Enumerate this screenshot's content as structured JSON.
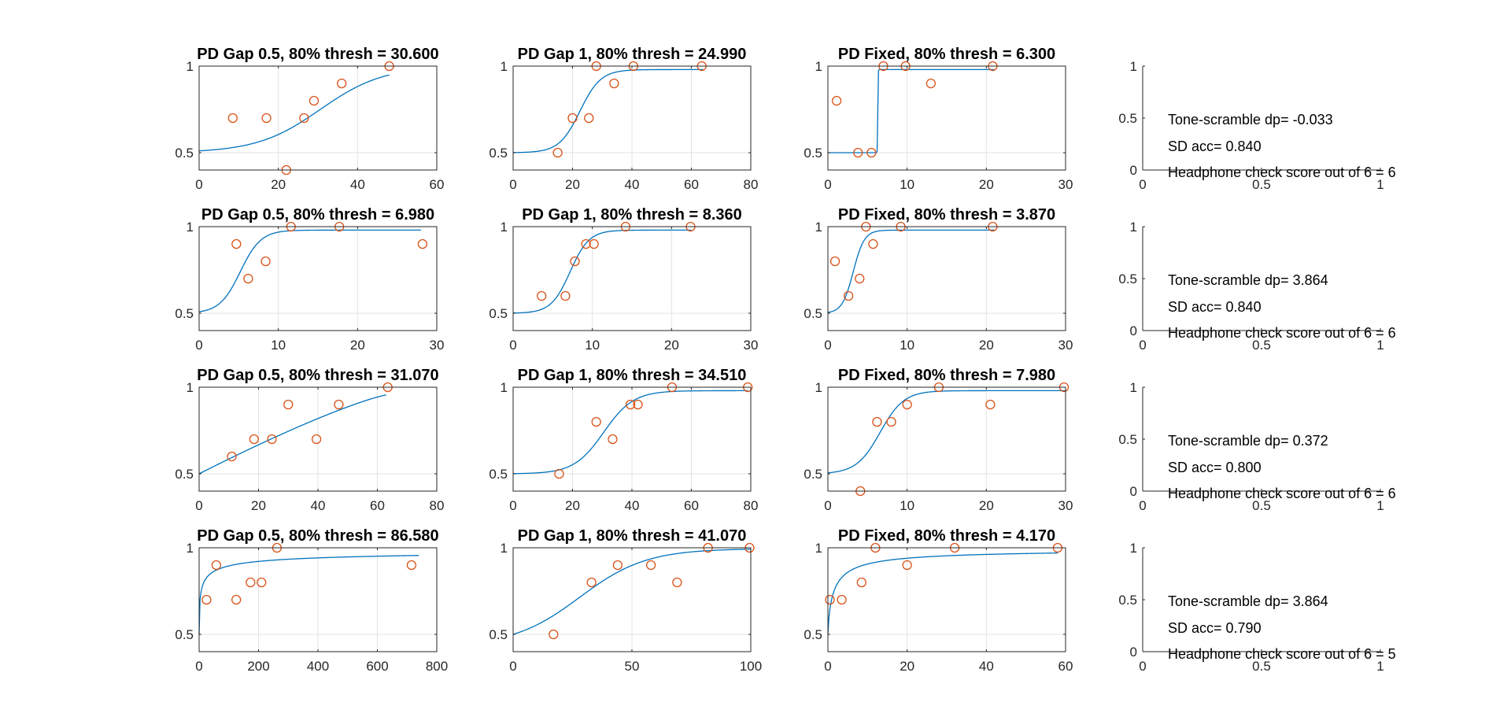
{
  "colors": {
    "curve": "#0072BD",
    "marker": "#D95319",
    "axis": "#262626",
    "grid": "#e3e3e3",
    "background": "#ffffff"
  },
  "chart_data": [
    {
      "type": "scatter",
      "title": "PD Gap 0.5, 80% thresh = 30.600",
      "xlim": [
        0,
        60
      ],
      "ylim": [
        0.4,
        1
      ],
      "xticks": [
        0,
        20,
        40,
        60
      ],
      "yticks": [
        0.5,
        1
      ],
      "grid": true,
      "fit": {
        "kind": "logistic",
        "mid": 30.6,
        "scale": 8,
        "ymax": 1,
        "xmax": 48
      },
      "points": {
        "x": [
          8.5,
          17,
          22,
          26.5,
          29,
          36,
          48
        ],
        "y": [
          0.7,
          0.7,
          0.4,
          0.7,
          0.8,
          0.9,
          1.0
        ]
      }
    },
    {
      "type": "scatter",
      "title": "PD Gap 1, 80% thresh = 24.990",
      "xlim": [
        0,
        80
      ],
      "ylim": [
        0.4,
        1
      ],
      "xticks": [
        0,
        20,
        40,
        60,
        80
      ],
      "yticks": [
        0.5,
        1
      ],
      "grid": true,
      "fit": {
        "kind": "logistic",
        "mid": 22.5,
        "scale": 3.5,
        "ymax": 0.98,
        "xmax": 64
      },
      "points": {
        "x": [
          15,
          20,
          25.5,
          28,
          34,
          40.5,
          63.5
        ],
        "y": [
          0.5,
          0.7,
          0.7,
          1.0,
          0.9,
          1.0,
          1.0
        ]
      }
    },
    {
      "type": "scatter",
      "title": "PD Fixed, 80% thresh = 6.300",
      "xlim": [
        0,
        30
      ],
      "ylim": [
        0.4,
        1
      ],
      "xticks": [
        0,
        10,
        20,
        30
      ],
      "yticks": [
        0.5,
        1
      ],
      "grid": true,
      "fit": {
        "kind": "logistic",
        "mid": 6.3,
        "scale": 0.02,
        "ymax": 0.98,
        "xmax": 21
      },
      "points": {
        "x": [
          1.1,
          3.8,
          5.5,
          7.0,
          9.8,
          13,
          20.8
        ],
        "y": [
          0.8,
          0.5,
          0.5,
          1.0,
          1.0,
          0.9,
          1.0
        ]
      }
    },
    {
      "type": "text",
      "xlim": [
        0,
        1
      ],
      "ylim": [
        0,
        1
      ],
      "xticks": [
        0,
        0.5,
        1
      ],
      "yticks": [
        0,
        0.5,
        1
      ],
      "annotations": [
        "Tone-scramble dp= -0.033",
        "SD acc= 0.840",
        "Headphone check score out of 6 = 6"
      ]
    },
    {
      "type": "scatter",
      "title": "PD Gap 0.5, 80% thresh = 6.980",
      "xlim": [
        0,
        30
      ],
      "ylim": [
        0.4,
        1
      ],
      "xticks": [
        0,
        10,
        20,
        30
      ],
      "yticks": [
        0.5,
        1
      ],
      "grid": true,
      "fit": {
        "kind": "logistic",
        "mid": 5.2,
        "scale": 1.3,
        "ymax": 0.98,
        "xmax": 28
      },
      "points": {
        "x": [
          4.7,
          6.2,
          8.4,
          11.6,
          17.7,
          28.2
        ],
        "y": [
          0.9,
          0.7,
          0.8,
          1.0,
          1.0,
          0.9
        ]
      }
    },
    {
      "type": "scatter",
      "title": "PD Gap 1, 80% thresh = 8.360",
      "xlim": [
        0,
        30
      ],
      "ylim": [
        0.4,
        1
      ],
      "xticks": [
        0,
        10,
        20,
        30
      ],
      "yticks": [
        0.5,
        1
      ],
      "grid": true,
      "fit": {
        "kind": "logistic",
        "mid": 7.2,
        "scale": 1.2,
        "ymax": 0.98,
        "xmax": 22.5
      },
      "points": {
        "x": [
          3.6,
          6.6,
          7.8,
          9.2,
          10.2,
          14.2,
          22.4
        ],
        "y": [
          0.6,
          0.6,
          0.8,
          0.9,
          0.9,
          1.0,
          1.0
        ]
      }
    },
    {
      "type": "scatter",
      "title": "PD Fixed, 80% thresh = 3.870",
      "xlim": [
        0,
        30
      ],
      "ylim": [
        0.4,
        1
      ],
      "xticks": [
        0,
        10,
        20,
        30
      ],
      "yticks": [
        0.5,
        1
      ],
      "grid": true,
      "fit": {
        "kind": "logistic",
        "mid": 3.2,
        "scale": 0.7,
        "ymax": 0.98,
        "xmax": 21
      },
      "points": {
        "x": [
          0.9,
          2.6,
          4.0,
          4.8,
          5.7,
          9.2,
          20.8
        ],
        "y": [
          0.8,
          0.6,
          0.7,
          1.0,
          0.9,
          1.0,
          1.0
        ]
      }
    },
    {
      "type": "text",
      "xlim": [
        0,
        1
      ],
      "ylim": [
        0,
        1
      ],
      "xticks": [
        0,
        0.5,
        1
      ],
      "yticks": [
        0,
        0.5,
        1
      ],
      "annotations": [
        "Tone-scramble dp= 3.864",
        "SD acc= 0.840",
        "Headphone check score out of 6 = 6"
      ]
    },
    {
      "type": "scatter",
      "title": "PD Gap 0.5, 80% thresh = 31.070",
      "xlim": [
        0,
        80
      ],
      "ylim": [
        0.4,
        1
      ],
      "xticks": [
        0,
        20,
        40,
        60,
        80
      ],
      "yticks": [
        0.5,
        1
      ],
      "grid": true,
      "fit": {
        "kind": "power",
        "ymax": 0.955,
        "xmax": 63,
        "xref": 63,
        "p": 1.2
      },
      "points": {
        "x": [
          11,
          18.5,
          24.5,
          30,
          39.5,
          47,
          63.5
        ],
        "y": [
          0.6,
          0.7,
          0.7,
          0.9,
          0.7,
          0.9,
          1.0
        ]
      }
    },
    {
      "type": "scatter",
      "title": "PD Gap 1, 80% thresh = 34.510",
      "xlim": [
        0,
        80
      ],
      "ylim": [
        0.4,
        1
      ],
      "xticks": [
        0,
        20,
        40,
        60,
        80
      ],
      "yticks": [
        0.5,
        1
      ],
      "grid": true,
      "fit": {
        "kind": "logistic",
        "mid": 30.5,
        "scale": 5,
        "ymax": 0.98,
        "xmax": 79
      },
      "points": {
        "x": [
          15.5,
          28,
          33.5,
          39.5,
          42,
          53.5,
          79
        ],
        "y": [
          0.5,
          0.8,
          0.7,
          0.9,
          0.9,
          1.0,
          1.0
        ]
      }
    },
    {
      "type": "scatter",
      "title": "PD Fixed, 80% thresh = 7.980",
      "xlim": [
        0,
        30
      ],
      "ylim": [
        0.4,
        1
      ],
      "xticks": [
        0,
        10,
        20,
        30
      ],
      "yticks": [
        0.5,
        1
      ],
      "grid": true,
      "fit": {
        "kind": "logistic",
        "mid": 6.6,
        "scale": 1.5,
        "ymax": 0.98,
        "xmax": 30
      },
      "points": {
        "x": [
          4.1,
          6.2,
          8.0,
          10.0,
          14.0,
          20.5,
          29.8
        ],
        "y": [
          0.4,
          0.8,
          0.8,
          0.9,
          1.0,
          0.9,
          1.0
        ]
      }
    },
    {
      "type": "text",
      "xlim": [
        0,
        1
      ],
      "ylim": [
        0,
        1
      ],
      "xticks": [
        0,
        0.5,
        1
      ],
      "yticks": [
        0,
        0.5,
        1
      ],
      "annotations": [
        "Tone-scramble dp= 0.372",
        "SD acc= 0.800",
        "Headphone check score out of 6 = 6"
      ]
    },
    {
      "type": "scatter",
      "title": "PD Gap 0.5, 80% thresh = 86.580",
      "xlim": [
        0,
        800
      ],
      "ylim": [
        0.4,
        1
      ],
      "xticks": [
        0,
        200,
        400,
        600,
        800
      ],
      "yticks": [
        0.5,
        1
      ],
      "grid": true,
      "fit": {
        "kind": "hill",
        "k": 7,
        "n": 0.5,
        "ymax": 1.0,
        "xmax": 740
      },
      "points": {
        "x": [
          25,
          58,
          125,
          173,
          210,
          262,
          715
        ],
        "y": [
          0.7,
          0.9,
          0.7,
          0.8,
          0.8,
          1.0,
          0.9
        ]
      }
    },
    {
      "type": "scatter",
      "title": "PD Gap 1, 80% thresh = 41.070",
      "xlim": [
        0,
        100
      ],
      "ylim": [
        0.4,
        1
      ],
      "xticks": [
        0,
        50,
        100
      ],
      "yticks": [
        0.5,
        1
      ],
      "grid": true,
      "fit": {
        "kind": "logistic0",
        "mid": 28,
        "scale": 14,
        "ymax": 0.995,
        "xmax": 100
      },
      "points": {
        "x": [
          17,
          33,
          44,
          58,
          69,
          82,
          99.5
        ],
        "y": [
          0.5,
          0.8,
          0.9,
          0.9,
          0.8,
          1.0,
          1.0
        ]
      }
    },
    {
      "type": "scatter",
      "title": "PD Fixed, 80% thresh = 4.170",
      "xlim": [
        0,
        60
      ],
      "ylim": [
        0.4,
        1
      ],
      "xticks": [
        0,
        20,
        40,
        60
      ],
      "yticks": [
        0.5,
        1
      ],
      "grid": true,
      "fit": {
        "kind": "hill",
        "k": 1.5,
        "n": 0.8,
        "ymax": 0.995,
        "xmax": 58
      },
      "points": {
        "x": [
          0.5,
          3.5,
          8.5,
          12,
          20,
          32,
          58
        ],
        "y": [
          0.7,
          0.7,
          0.8,
          1.0,
          0.9,
          1.0,
          1.0
        ]
      }
    },
    {
      "type": "text",
      "xlim": [
        0,
        1
      ],
      "ylim": [
        0,
        1
      ],
      "xticks": [
        0,
        0.5,
        1
      ],
      "yticks": [
        0,
        0.5,
        1
      ],
      "annotations": [
        "Tone-scramble dp= 3.864",
        "SD acc= 0.790",
        "Headphone check score out of 6 = 5"
      ]
    }
  ]
}
